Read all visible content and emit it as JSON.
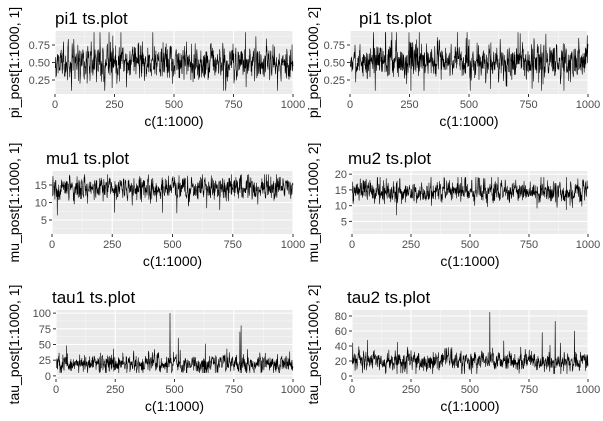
{
  "chart_data": [
    {
      "type": "line",
      "title": "pi1 ts.plot",
      "xlabel": "c(1:1000)",
      "ylabel": "pi_post[1:1000, 1]",
      "xlim": [
        0,
        1000
      ],
      "ylim": [
        0.05,
        0.95
      ],
      "xticks": [
        0,
        250,
        500,
        750,
        1000
      ],
      "yticks": [
        0.25,
        0.5,
        0.75
      ],
      "ytick_labels": [
        "0.25",
        "0.50",
        "0.75"
      ],
      "grid": true,
      "series": [
        {
          "n": 1000,
          "mean": 0.5,
          "sd": 0.12,
          "min": 0.1,
          "max": 0.93
        }
      ]
    },
    {
      "type": "line",
      "title": "pi1 ts.plot",
      "xlabel": "c(1:1000)",
      "ylabel": "pi_post[1:1000, 2]",
      "xlim": [
        0,
        1000
      ],
      "ylim": [
        0.05,
        0.95
      ],
      "xticks": [
        0,
        250,
        500,
        750,
        1000
      ],
      "yticks": [
        0.25,
        0.5,
        0.75
      ],
      "ytick_labels": [
        "0.25",
        "0.50",
        "0.75"
      ],
      "grid": true,
      "series": [
        {
          "n": 1000,
          "mean": 0.52,
          "sd": 0.12,
          "min": 0.1,
          "max": 0.93
        }
      ]
    },
    {
      "type": "line",
      "title": "mu1 ts.plot",
      "xlabel": "c(1:1000)",
      "ylabel": "mu_post[1:1000, 1]",
      "xlim": [
        0,
        1000
      ],
      "ylim": [
        1,
        19
      ],
      "xticks": [
        0,
        250,
        500,
        750,
        1000
      ],
      "yticks": [
        5,
        10,
        15
      ],
      "ytick_labels": [
        "5",
        "10",
        "15"
      ],
      "grid": true,
      "series": [
        {
          "n": 1000,
          "mean": 14,
          "sd": 1.6,
          "min": 3.5,
          "max": 18
        }
      ]
    },
    {
      "type": "line",
      "title": "mu2 ts.plot",
      "xlabel": "c(1:1000)",
      "ylabel": "mu_post[1:1000, 2]",
      "xlim": [
        0,
        1000
      ],
      "ylim": [
        1,
        21
      ],
      "xticks": [
        0,
        250,
        500,
        750,
        1000
      ],
      "yticks": [
        5,
        10,
        15,
        20
      ],
      "ytick_labels": [
        "5",
        "10",
        "15",
        "20"
      ],
      "grid": true,
      "series": [
        {
          "n": 1000,
          "mean": 14.5,
          "sd": 1.7,
          "min": 1.5,
          "max": 19
        }
      ]
    },
    {
      "type": "line",
      "title": "tau1 ts.plot",
      "xlabel": "c(1:1000)",
      "ylabel": "tau_post[1:1000, 1]",
      "xlim": [
        0,
        1000
      ],
      "ylim": [
        -5,
        105
      ],
      "xticks": [
        0,
        250,
        500,
        750,
        1000
      ],
      "yticks": [
        0,
        25,
        50,
        75,
        100
      ],
      "ytick_labels": [
        "0",
        "25",
        "50",
        "75",
        "100"
      ],
      "grid": true,
      "series": [
        {
          "n": 1000,
          "mean": 20,
          "sd": 7,
          "min": 5,
          "max": 100,
          "spikes": [
            [
              480,
              100
            ],
            [
              780,
              80
            ],
            [
              775,
              70
            ],
            [
              515,
              60
            ]
          ]
        }
      ]
    },
    {
      "type": "line",
      "title": "tau2 ts.plot",
      "xlabel": "c(1:1000)",
      "ylabel": "tau_post[1:1000, 2]",
      "xlim": [
        0,
        1000
      ],
      "ylim": [
        -4,
        88
      ],
      "xticks": [
        0,
        250,
        500,
        750,
        1000
      ],
      "yticks": [
        0,
        20,
        40,
        60,
        80
      ],
      "ytick_labels": [
        "0",
        "20",
        "40",
        "60",
        "80"
      ],
      "grid": true,
      "series": [
        {
          "n": 1000,
          "mean": 20,
          "sd": 6,
          "min": 3,
          "max": 85,
          "spikes": [
            [
              583,
              85
            ],
            [
              860,
              73
            ],
            [
              942,
              60
            ],
            [
              805,
              58
            ]
          ]
        }
      ]
    }
  ]
}
